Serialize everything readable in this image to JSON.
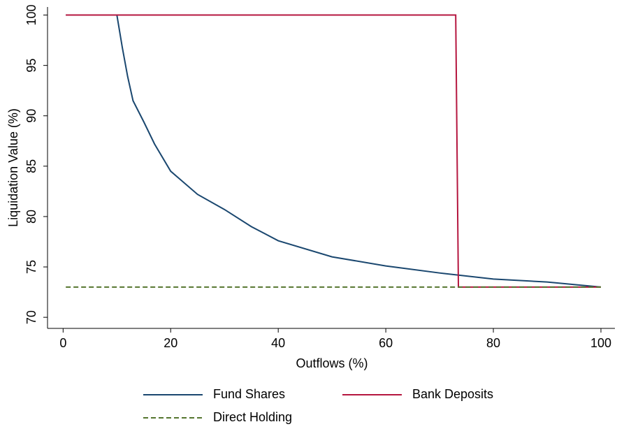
{
  "chart_data": {
    "type": "line",
    "xlabel": "Outflows (%)",
    "ylabel": "Liquidation Value (%)",
    "xlim": [
      -2.9,
      102.6
    ],
    "ylim": [
      68.9,
      100.8
    ],
    "xticks": [
      0,
      20,
      40,
      60,
      80,
      100
    ],
    "yticks": [
      70,
      75,
      80,
      85,
      90,
      95,
      100
    ],
    "series": [
      {
        "name": "Fund Shares",
        "color": "#1a476f",
        "dash": false,
        "x": [
          0.5,
          10,
          11,
          12,
          13,
          15,
          17,
          20,
          25,
          30,
          35,
          40,
          50,
          60,
          70,
          80,
          90,
          100
        ],
        "values": [
          100,
          100,
          96.8,
          93.9,
          91.5,
          89.4,
          87.2,
          84.5,
          82.2,
          80.7,
          79.0,
          77.6,
          76.0,
          75.1,
          74.4,
          73.8,
          73.5,
          73
        ]
      },
      {
        "name": "Bank Deposits",
        "color": "#b5163f",
        "dash": false,
        "x": [
          0.5,
          73,
          73.5,
          100
        ],
        "values": [
          100,
          100,
          73,
          73
        ]
      },
      {
        "name": "Direct Holding",
        "color": "#55752f",
        "dash": true,
        "x": [
          0.5,
          100
        ],
        "values": [
          73,
          73
        ]
      }
    ]
  }
}
